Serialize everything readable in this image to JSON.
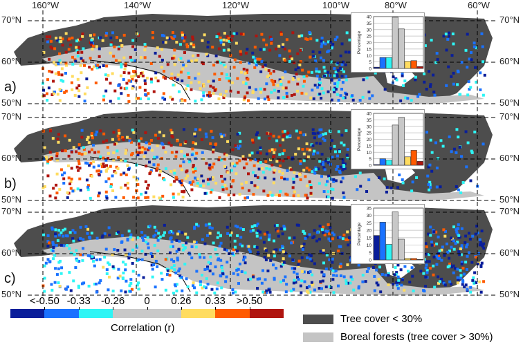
{
  "longitude_labels": [
    "160°W",
    "140°W",
    "120°W",
    "100°W",
    "80°W",
    "60°W"
  ],
  "colors": {
    "tree_cover_low": "#4d4d4d",
    "boreal": "#c4c4c4",
    "bins": [
      "#0a1e9a",
      "#1a72ff",
      "#2ef5f5",
      "#c8c8c8",
      "#c8c8c8",
      "#ffdc60",
      "#ff5a00",
      "#b0150f"
    ]
  },
  "panels": [
    {
      "label": "a)",
      "lat_labels": [
        "70°N",
        "60°N",
        "50°N"
      ],
      "inset": {
        "ylabel": "Percentage",
        "yticks": [
          "0",
          "5",
          "10",
          "15",
          "20",
          "25",
          "30",
          "35",
          "40"
        ],
        "ymax": 40,
        "values": [
          1,
          8.5,
          8.5,
          39.5,
          30.5,
          5.5,
          6,
          1.5
        ]
      }
    },
    {
      "label": "b)",
      "lat_labels": [
        "70°N",
        "60°N",
        "50°N"
      ],
      "inset": {
        "ylabel": "Percentage",
        "yticks": [
          "0",
          "5",
          "10",
          "15",
          "20",
          "25",
          "30",
          "35",
          "40"
        ],
        "ymax": 40,
        "values": [
          0.5,
          5,
          4,
          31,
          37,
          6.5,
          11.5,
          3
        ]
      }
    },
    {
      "label": "c)",
      "lat_labels": [
        "70°N",
        "60°N",
        "50°N"
      ],
      "inset": {
        "ylabel": "Percentage",
        "yticks": [
          "0",
          "5",
          "10",
          "15",
          "20",
          "25",
          "30",
          "35"
        ],
        "ymax": 35,
        "values": [
          16.5,
          25.5,
          10.5,
          32.5,
          14,
          1,
          1,
          0.3
        ]
      }
    }
  ],
  "legend": {
    "ticks": [
      "<-0.50",
      "-0.33",
      "-0.26",
      "0",
      "0.26",
      "0.33",
      ">0.50"
    ],
    "title": "Correlation (r)",
    "tree_cover": "Tree cover < 30%",
    "boreal": "Boreal forests (tree cover > 30%)"
  }
}
